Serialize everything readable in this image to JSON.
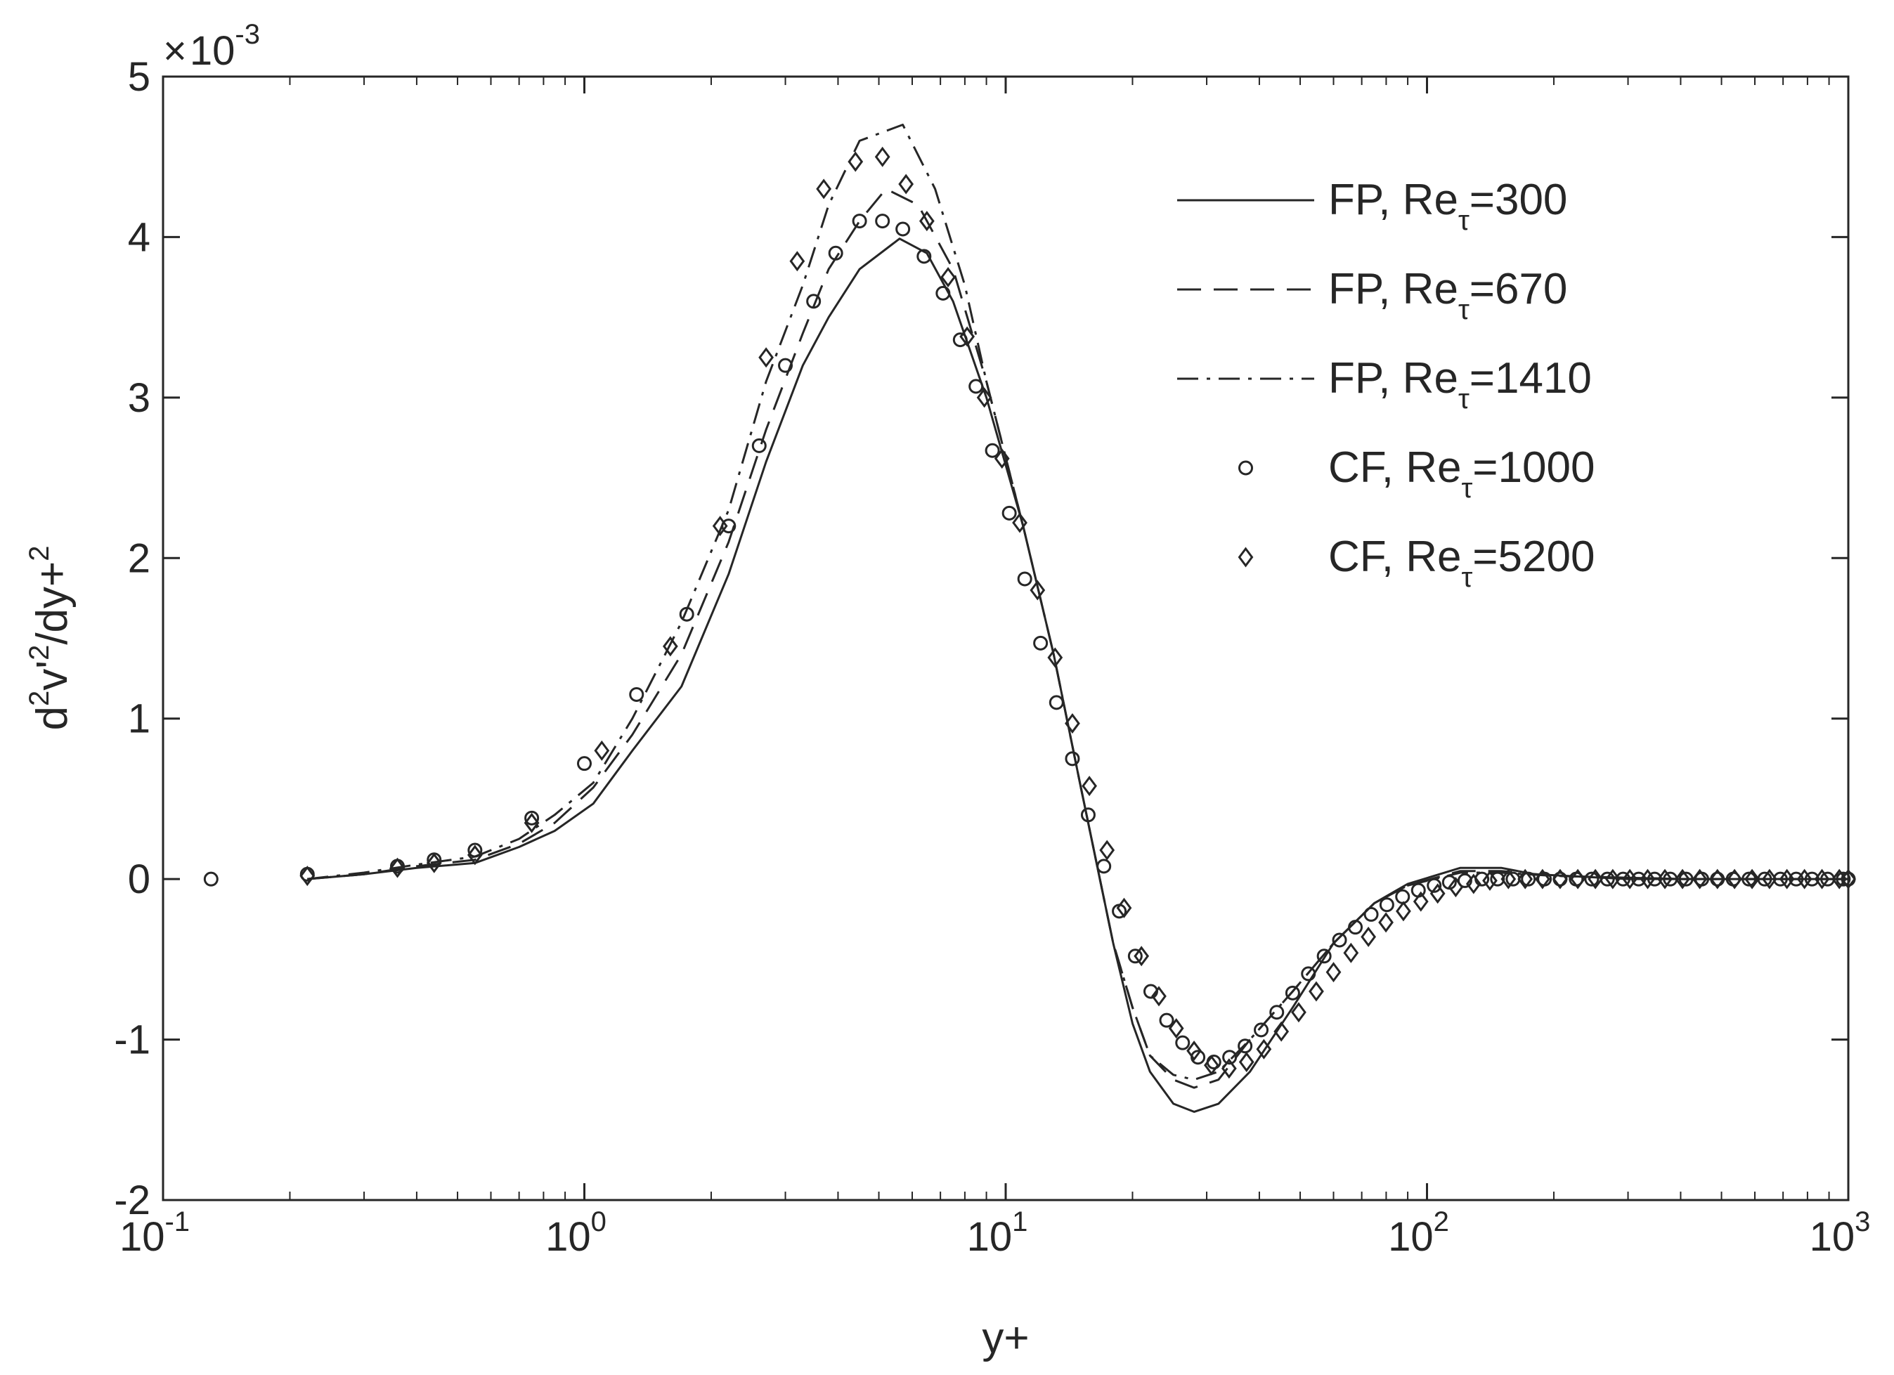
{
  "chart_data": {
    "type": "line",
    "title": "",
    "xlabel": "y+",
    "ylabel": {
      "base": "d",
      "sup1": "2",
      "mid": "v'",
      "sup2": "2",
      "mid2": "/dy+",
      "sup3": "2"
    },
    "xscale": "log",
    "xlim": [
      0.1,
      1000
    ],
    "ylim": [
      -0.002,
      0.005
    ],
    "y_multiplier_label": {
      "sign": "×",
      "base": "10",
      "exp": "-3"
    },
    "x_ticks": [
      {
        "value": 0.1,
        "base": "10",
        "exp": "-1"
      },
      {
        "value": 1,
        "base": "10",
        "exp": "0"
      },
      {
        "value": 10,
        "base": "10",
        "exp": "1"
      },
      {
        "value": 100,
        "base": "10",
        "exp": "2"
      },
      {
        "value": 1000,
        "base": "10",
        "exp": "3"
      }
    ],
    "y_ticks": [
      {
        "value": -0.002,
        "label": "-2"
      },
      {
        "value": -0.001,
        "label": "-1"
      },
      {
        "value": 0,
        "label": "0"
      },
      {
        "value": 0.001,
        "label": "1"
      },
      {
        "value": 0.002,
        "label": "2"
      },
      {
        "value": 0.003,
        "label": "3"
      },
      {
        "value": 0.004,
        "label": "4"
      },
      {
        "value": 0.005,
        "label": "5"
      }
    ],
    "grid": false,
    "legend_position": "top-right",
    "series": [
      {
        "name": "FP, Re_τ=300",
        "legend": {
          "prefix": "FP, Re",
          "sub": "τ",
          "suffix": "=300"
        },
        "style": "solid",
        "marker": "none",
        "x": [
          0.22,
          0.3,
          0.4,
          0.55,
          0.7,
          0.85,
          1.05,
          1.3,
          1.7,
          2.2,
          2.7,
          3.3,
          3.8,
          4.5,
          5.6,
          6.5,
          7.5,
          9,
          11,
          13,
          15,
          18,
          20,
          22,
          25,
          28,
          32,
          38,
          48,
          60,
          75,
          90,
          120,
          150,
          180,
          300,
          500,
          1000
        ],
        "y": [
          0,
          3e-05,
          7e-05,
          0.0001,
          0.0002,
          0.0003,
          0.00047,
          0.0008,
          0.0012,
          0.0019,
          0.0026,
          0.0032,
          0.0035,
          0.0038,
          0.00399,
          0.0039,
          0.0036,
          0.003,
          0.0022,
          0.0014,
          0.0006,
          -0.0004,
          -0.0009,
          -0.0012,
          -0.0014,
          -0.00145,
          -0.0014,
          -0.0012,
          -0.0008,
          -0.0004,
          -0.00015,
          -3e-05,
          7e-05,
          7e-05,
          3e-05,
          0,
          0,
          0
        ]
      },
      {
        "name": "FP, Re_τ=670",
        "legend": {
          "prefix": "FP, Re",
          "sub": "τ",
          "suffix": "=670"
        },
        "style": "dashed",
        "marker": "none",
        "x": [
          0.22,
          0.3,
          0.4,
          0.55,
          0.7,
          0.85,
          1.05,
          1.3,
          1.7,
          2.2,
          2.7,
          3.3,
          3.8,
          4.5,
          5.2,
          6.2,
          7.5,
          9,
          11,
          13,
          15,
          18,
          20,
          22,
          25,
          28,
          32,
          38,
          48,
          60,
          75,
          90,
          120,
          150,
          200,
          400,
          1000
        ],
        "y": [
          0,
          3e-05,
          8e-05,
          0.00012,
          0.00022,
          0.00035,
          0.00057,
          0.0009,
          0.0014,
          0.0021,
          0.0028,
          0.0034,
          0.0038,
          0.0041,
          0.0043,
          0.0042,
          0.0038,
          0.0031,
          0.0022,
          0.0014,
          0.0006,
          -0.0004,
          -0.0008,
          -0.0011,
          -0.00125,
          -0.0013,
          -0.00125,
          -0.001,
          -0.0007,
          -0.0004,
          -0.00015,
          -4e-05,
          5e-05,
          5e-05,
          2e-05,
          0,
          0
        ]
      },
      {
        "name": "FP, Re_τ=1410",
        "legend": {
          "prefix": "FP, Re",
          "sub": "τ",
          "suffix": "=1410"
        },
        "style": "dashdot",
        "marker": "none",
        "x": [
          0.22,
          0.3,
          0.4,
          0.55,
          0.7,
          0.85,
          1.05,
          1.3,
          1.7,
          2.2,
          2.7,
          3.3,
          3.8,
          4.5,
          5.7,
          6.8,
          8,
          9,
          11,
          13,
          15,
          18,
          20,
          22,
          25,
          28,
          32,
          38,
          48,
          60,
          75,
          90,
          120,
          150,
          200,
          400,
          1000
        ],
        "y": [
          0,
          4e-05,
          9e-05,
          0.00014,
          0.00025,
          0.0004,
          0.0006,
          0.001,
          0.0016,
          0.0023,
          0.0031,
          0.0037,
          0.0042,
          0.0046,
          0.0047,
          0.0043,
          0.0037,
          0.0031,
          0.0022,
          0.0014,
          0.0006,
          -0.0004,
          -0.0008,
          -0.0011,
          -0.00122,
          -0.00125,
          -0.0012,
          -0.001,
          -0.0007,
          -0.0004,
          -0.00015,
          -4e-05,
          4e-05,
          4e-05,
          2e-05,
          0,
          0
        ]
      },
      {
        "name": "CF, Re_τ=1000",
        "legend": {
          "prefix": "CF, Re",
          "sub": "τ",
          "suffix": "=1000"
        },
        "style": "none",
        "marker": "circle",
        "x": [
          0.13,
          0.22,
          0.36,
          0.44,
          0.55,
          0.75,
          1.0,
          1.33,
          1.75,
          2.2,
          2.6,
          3.0,
          3.5,
          3.95,
          4.5,
          5.1,
          5.7,
          6.4,
          7.1,
          7.8,
          8.5,
          9.3,
          10.2,
          11.1,
          12.1,
          13.2,
          14.4,
          15.7,
          17.1,
          18.6,
          20.3,
          22.1,
          24.1,
          26.3,
          28.6,
          31.2,
          34,
          37,
          40.4,
          44,
          48,
          52.3,
          57,
          62,
          67.6,
          73.7,
          80.3,
          87.5,
          95.4,
          104,
          113,
          123,
          135,
          147,
          160,
          174,
          190,
          207,
          226,
          246,
          268,
          292,
          318,
          347,
          378,
          412,
          449,
          489,
          533,
          581,
          633,
          690,
          752,
          820,
          893,
          973,
          1000
        ],
        "y": [
          0,
          3e-05,
          8e-05,
          0.00012,
          0.00018,
          0.00038,
          0.00072,
          0.00115,
          0.00165,
          0.0022,
          0.0027,
          0.0032,
          0.0036,
          0.0039,
          0.0041,
          0.0041,
          0.00405,
          0.00388,
          0.00365,
          0.00336,
          0.00307,
          0.00267,
          0.00228,
          0.00187,
          0.00147,
          0.0011,
          0.00075,
          0.0004,
          8e-05,
          -0.0002,
          -0.00048,
          -0.0007,
          -0.00088,
          -0.00102,
          -0.00111,
          -0.00114,
          -0.00111,
          -0.00104,
          -0.00094,
          -0.00083,
          -0.00071,
          -0.00059,
          -0.00048,
          -0.00038,
          -0.0003,
          -0.00022,
          -0.00016,
          -0.00011,
          -7e-05,
          -4e-05,
          -2e-05,
          -1e-05,
          0,
          0,
          0,
          0,
          0,
          0,
          0,
          0,
          0,
          0,
          0,
          0,
          0,
          0,
          0,
          0,
          0,
          0,
          0,
          0,
          0,
          0,
          0,
          0,
          0
        ]
      },
      {
        "name": "CF, Re_τ=5200",
        "legend": {
          "prefix": "CF, Re",
          "sub": "τ",
          "suffix": "=5200"
        },
        "style": "none",
        "marker": "diamond",
        "x": [
          0.22,
          0.36,
          0.44,
          0.55,
          0.75,
          1.1,
          1.6,
          2.1,
          2.7,
          3.2,
          3.7,
          4.4,
          5.1,
          5.8,
          6.5,
          7.3,
          8.1,
          8.9,
          9.8,
          10.8,
          11.9,
          13.1,
          14.4,
          15.8,
          17.4,
          19.1,
          21,
          23.1,
          25.4,
          28,
          30.8,
          33.9,
          37.3,
          41,
          45.1,
          49.6,
          54.6,
          60,
          66,
          72.6,
          79.9,
          87.9,
          96.7,
          106,
          117,
          129,
          141,
          156,
          171,
          188,
          207,
          228,
          251,
          276,
          303,
          334,
          367,
          404,
          444,
          489,
          537,
          591,
          650,
          715,
          787,
          866,
          952,
          1000
        ],
        "y": [
          2e-05,
          7e-05,
          0.0001,
          0.00015,
          0.00035,
          0.0008,
          0.00145,
          0.0022,
          0.00325,
          0.00385,
          0.0043,
          0.00447,
          0.0045,
          0.00433,
          0.0041,
          0.00375,
          0.00338,
          0.003,
          0.00262,
          0.00222,
          0.0018,
          0.00138,
          0.00097,
          0.00058,
          0.00018,
          -0.00018,
          -0.00048,
          -0.00073,
          -0.00093,
          -0.00107,
          -0.00116,
          -0.00118,
          -0.00114,
          -0.00106,
          -0.00095,
          -0.00083,
          -0.0007,
          -0.00058,
          -0.00046,
          -0.00036,
          -0.00027,
          -0.0002,
          -0.00014,
          -9e-05,
          -5e-05,
          -3e-05,
          -1e-05,
          0,
          0,
          0,
          0,
          0,
          0,
          0,
          0,
          0,
          0,
          0,
          0,
          0,
          0,
          0,
          0,
          0,
          0,
          0,
          0,
          0
        ]
      }
    ]
  }
}
